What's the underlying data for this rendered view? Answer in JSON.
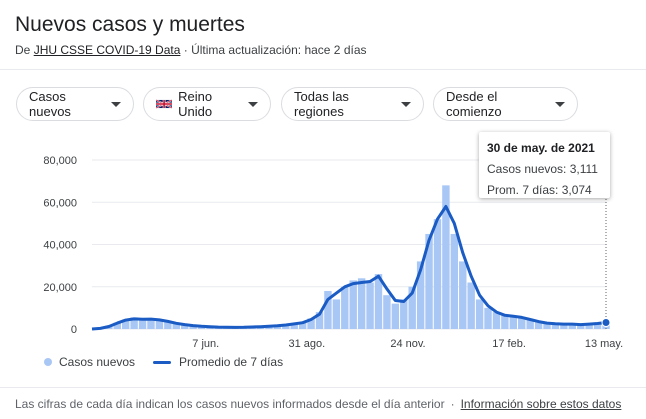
{
  "header": {
    "title": "Nuevos casos y muertes",
    "source_prefix": "De ",
    "source_link": "JHU CSSE COVID-19 Data",
    "updated": " · Última actualización: hace 2 días"
  },
  "filters": [
    {
      "label": "Casos nuevos",
      "icon": "caret-down-icon"
    },
    {
      "label": "Reino Unido",
      "icon": "uk-flag-icon"
    },
    {
      "label": "Todas las regiones",
      "icon": "caret-down-icon"
    },
    {
      "label": "Desde el comienzo",
      "icon": "caret-down-icon"
    }
  ],
  "tooltip": {
    "date": "30 de may. de 2021",
    "cases": "Casos nuevos: 3,111",
    "avg": "Prom. 7 días: 3,074"
  },
  "legend": {
    "cases": "Casos nuevos",
    "avg": "Promedio de 7 días"
  },
  "footer": {
    "note": "Las cifras de cada día indican los casos nuevos informados desde el día anterior",
    "sep": "·",
    "link": "Información sobre estos datos"
  },
  "colors": {
    "bars": "#a9c7f5",
    "line": "#1a5bc4",
    "grid": "#e8eaed"
  },
  "chart_data": {
    "type": "bar",
    "y_ticks": [
      0,
      20000,
      40000,
      60000,
      80000
    ],
    "y_tick_labels": [
      "0",
      "20,000",
      "40,000",
      "60,000",
      "80,000"
    ],
    "ylim": [
      0,
      80000
    ],
    "xlim": [
      0,
      120
    ],
    "x_tick_labels": [
      "7 jun.",
      "31 ago.",
      "24 nov.",
      "17 feb.",
      "13 may."
    ],
    "x_tick_positions": [
      27,
      51,
      75,
      99,
      122
    ],
    "series": [
      {
        "name": "Casos nuevos",
        "kind": "bars",
        "x": [
          0,
          2,
          4,
          6,
          8,
          10,
          12,
          14,
          16,
          18,
          20,
          22,
          24,
          26,
          28,
          30,
          32,
          34,
          36,
          38,
          40,
          42,
          44,
          46,
          48,
          50,
          52,
          54,
          56,
          58,
          60,
          62,
          64,
          66,
          68,
          70,
          72,
          74,
          76,
          78,
          80,
          82,
          84,
          86,
          88,
          90,
          92,
          94,
          96,
          98,
          100,
          102,
          104,
          106,
          108,
          110,
          112,
          114,
          116,
          118,
          120,
          122
        ],
        "values": [
          0,
          500,
          1500,
          3000,
          4500,
          5500,
          4500,
          5000,
          4200,
          3500,
          2500,
          2000,
          1500,
          1200,
          1000,
          900,
          800,
          700,
          800,
          1000,
          1200,
          1400,
          1600,
          2000,
          2500,
          3000,
          5000,
          8000,
          18000,
          14000,
          20000,
          23000,
          24000,
          22000,
          26000,
          16000,
          12000,
          14000,
          20000,
          32000,
          45000,
          52000,
          68000,
          45000,
          32000,
          22000,
          14000,
          10000,
          8000,
          6500,
          6000,
          5500,
          4500,
          3500,
          2800,
          2500,
          2200,
          2400,
          2000,
          2600,
          3100,
          3111
        ]
      },
      {
        "name": "Promedio de 7 días",
        "kind": "line",
        "x": [
          0,
          2,
          4,
          6,
          8,
          10,
          12,
          14,
          16,
          18,
          20,
          22,
          24,
          26,
          28,
          30,
          32,
          34,
          36,
          38,
          40,
          42,
          44,
          46,
          48,
          50,
          52,
          54,
          56,
          58,
          60,
          62,
          64,
          66,
          68,
          70,
          72,
          74,
          76,
          78,
          80,
          82,
          84,
          86,
          88,
          90,
          92,
          94,
          96,
          98,
          100,
          102,
          104,
          106,
          108,
          110,
          112,
          114,
          116,
          118,
          120,
          122
        ],
        "values": [
          0,
          300,
          1200,
          2800,
          4200,
          4800,
          4600,
          4700,
          4300,
          3600,
          2700,
          2100,
          1600,
          1300,
          1100,
          900,
          800,
          750,
          800,
          950,
          1100,
          1300,
          1500,
          1900,
          2400,
          3000,
          4500,
          7000,
          14000,
          17000,
          20000,
          21500,
          22000,
          22500,
          25000,
          19000,
          13500,
          13000,
          17000,
          28000,
          42000,
          52000,
          58000,
          50000,
          36000,
          25000,
          16000,
          11000,
          8000,
          6500,
          6000,
          5500,
          4500,
          3500,
          2800,
          2500,
          2300,
          2300,
          2100,
          2300,
          2600,
          3074
        ]
      }
    ]
  }
}
